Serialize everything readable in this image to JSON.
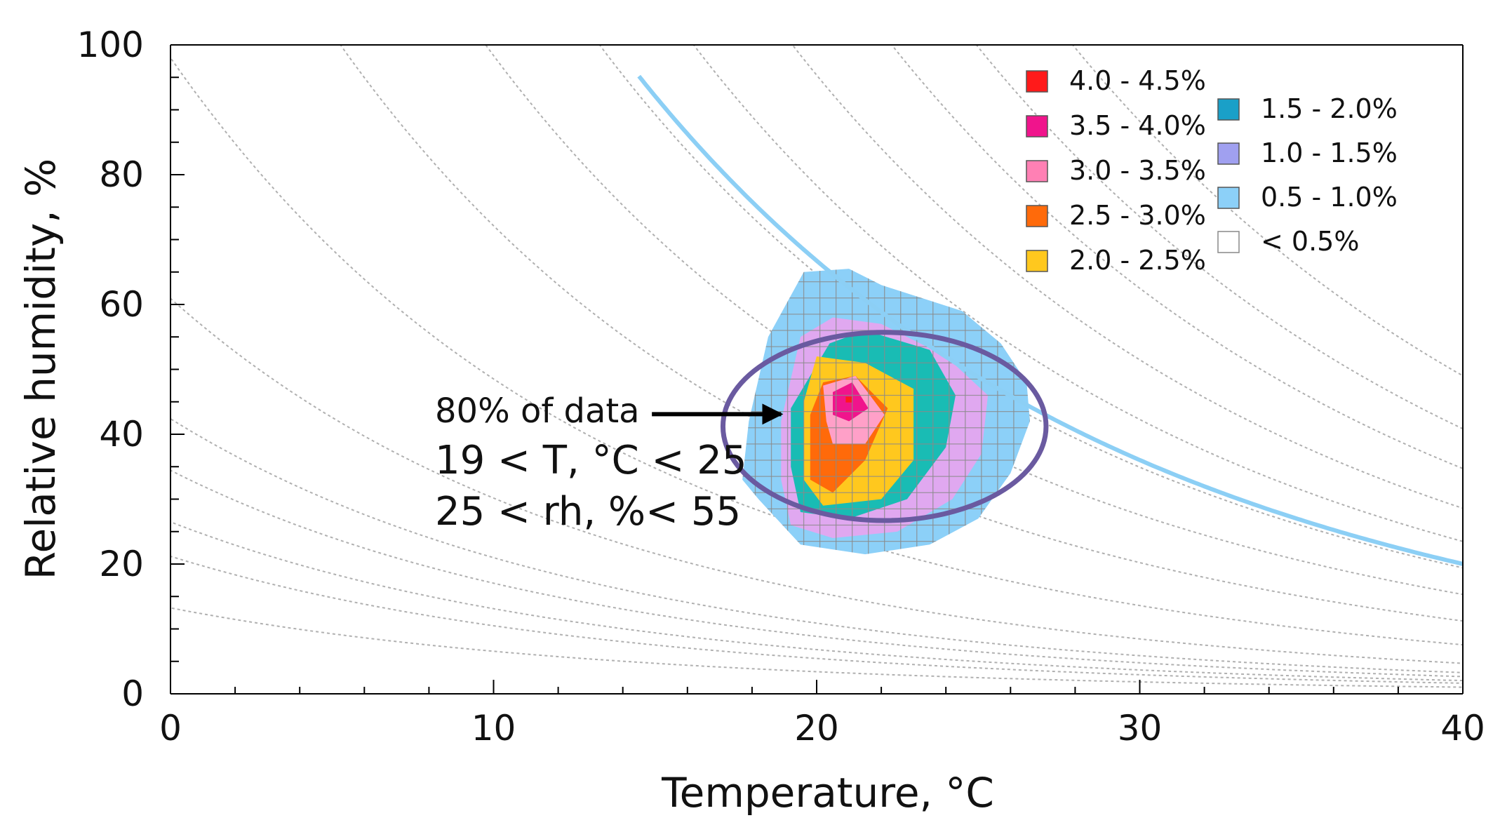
{
  "chart_data": {
    "type": "heatmap",
    "title": "",
    "xlabel": "Temperature, °C",
    "ylabel": "Relative humidity, %",
    "xlim": [
      0,
      40
    ],
    "ylim": [
      0,
      100
    ],
    "x_ticks": [
      0,
      10,
      20,
      30,
      40
    ],
    "x_tick_labels": [
      "0",
      "10",
      "20",
      "30",
      "40"
    ],
    "y_ticks": [
      0,
      20,
      40,
      60,
      80,
      100
    ],
    "y_tick_labels": [
      "0",
      "20",
      "40",
      "60",
      "80",
      "100"
    ],
    "x_minor_step": 2,
    "y_minor_step": 5,
    "grid": false,
    "legend": {
      "position": "top-right",
      "entries": [
        {
          "label": "4.0 - 4.5%",
          "color": "#ff1a1a"
        },
        {
          "label": "3.5 - 4.0%",
          "color": "#f0148c"
        },
        {
          "label": "3.0 - 3.5%",
          "color": "#ff80b4"
        },
        {
          "label": "2.5 - 3.0%",
          "color": "#ff6a0a"
        },
        {
          "label": "2.0 - 2.5%",
          "color": "#ffc81e"
        },
        {
          "label": "1.5 - 2.0%",
          "color": "#1aa0c8"
        },
        {
          "label": "1.0 - 1.5%",
          "color": "#a0a0f0"
        },
        {
          "label": "0.5 - 1.0%",
          "color": "#8cd0f8"
        },
        {
          "label": "< 0.5%",
          "color": "#ffffff"
        }
      ]
    },
    "contour_bands": [
      {
        "range": "0.5 - 1.0%",
        "color": "#8cd0f8",
        "polygon": [
          [
            19.6,
            65
          ],
          [
            21.0,
            65.5
          ],
          [
            22.0,
            63
          ],
          [
            24.5,
            59
          ],
          [
            25.7,
            54
          ],
          [
            26.5,
            48
          ],
          [
            26.6,
            42
          ],
          [
            26.0,
            34
          ],
          [
            25.0,
            27
          ],
          [
            23.5,
            23
          ],
          [
            21.5,
            21.5
          ],
          [
            19.5,
            23
          ],
          [
            18.2,
            30
          ],
          [
            17.7,
            33
          ],
          [
            17.9,
            42
          ],
          [
            18.5,
            55
          ]
        ]
      },
      {
        "range": "1.0 - 1.5%",
        "color": "#e0a8f0",
        "polygon": [
          [
            19.5,
            55
          ],
          [
            20.5,
            58
          ],
          [
            22.0,
            57
          ],
          [
            24.0,
            52
          ],
          [
            25.3,
            46
          ],
          [
            25.1,
            37
          ],
          [
            24.2,
            30
          ],
          [
            22.5,
            25
          ],
          [
            20.5,
            24
          ],
          [
            19.2,
            26
          ],
          [
            18.9,
            33
          ],
          [
            18.9,
            42
          ]
        ]
      },
      {
        "range": "1.5 - 2.0%",
        "color": "#19bcb4",
        "polygon": [
          [
            20.4,
            54
          ],
          [
            21.5,
            56
          ],
          [
            23.5,
            53
          ],
          [
            24.3,
            46
          ],
          [
            24.0,
            38
          ],
          [
            22.8,
            30
          ],
          [
            21.0,
            27
          ],
          [
            19.5,
            28
          ],
          [
            19.2,
            35
          ],
          [
            19.2,
            44
          ]
        ]
      },
      {
        "range": "2.0 - 2.5%",
        "color": "#ffc81e",
        "polygon": [
          [
            20.0,
            52
          ],
          [
            21.5,
            51
          ],
          [
            23.0,
            47
          ],
          [
            23.0,
            36
          ],
          [
            22.0,
            30
          ],
          [
            20.2,
            29
          ],
          [
            19.6,
            33
          ],
          [
            19.6,
            45
          ]
        ]
      },
      {
        "range": "2.5 - 3.0%",
        "color": "#ff6a0a",
        "polygon": [
          [
            20.2,
            48
          ],
          [
            21.2,
            49
          ],
          [
            22.2,
            44
          ],
          [
            21.5,
            36
          ],
          [
            20.5,
            31
          ],
          [
            19.8,
            33
          ],
          [
            19.8,
            43
          ]
        ]
      },
      {
        "range": "3.0 - 3.5%",
        "color": "#ffa0c8",
        "polygon": [
          [
            20.2,
            47.5
          ],
          [
            21.2,
            49
          ],
          [
            22.1,
            43
          ],
          [
            21.5,
            38.5
          ],
          [
            20.5,
            38.5
          ],
          [
            20.3,
            42
          ]
        ]
      },
      {
        "range": "3.5 - 4.0%",
        "color": "#f0148c",
        "polygon": [
          [
            20.5,
            46.5
          ],
          [
            21.1,
            48
          ],
          [
            21.6,
            44
          ],
          [
            21.0,
            42
          ],
          [
            20.5,
            43
          ]
        ]
      },
      {
        "range": "4.0 - 4.5%",
        "color": "#ff1a1a",
        "polygon": [
          [
            20.9,
            45.8
          ],
          [
            21.1,
            45.8
          ],
          [
            21.1,
            44.9
          ],
          [
            20.9,
            44.9
          ]
        ]
      }
    ],
    "cell_grid": {
      "x_from": 17.6,
      "x_to": 26.8,
      "x_step": 0.5,
      "y_from": 21,
      "y_to": 66,
      "y_step": 2.5
    },
    "comfort_circle": {
      "center_t": 22.1,
      "center_rh": 41.2,
      "radius_t": 5.0,
      "radius_rh": 14.5,
      "color": "#6a5aa0"
    },
    "saturation_curve": {
      "color": "#8ccff5",
      "t_start": 14.5,
      "t_end": 40,
      "formula": "rh = 100 * 1.65 / mixing_ratio_sat(t)"
    },
    "background_curves": {
      "color": "#b0b0b0",
      "mixing_ratios_g_per_kg": [
        0.5,
        0.8,
        1.0,
        1.3,
        1.6,
        2.3,
        3.7,
        5.5,
        7.5,
        9.5,
        11.5,
        14,
        17,
        20,
        24
      ]
    },
    "annotation": {
      "lines": [
        "80% of data",
        "19 < T, °C < 25",
        "25 < rh, %< 55"
      ],
      "arrow_tail": [
        14.9,
        43.1
      ],
      "arrow_head": [
        18.9,
        43.1
      ]
    }
  }
}
